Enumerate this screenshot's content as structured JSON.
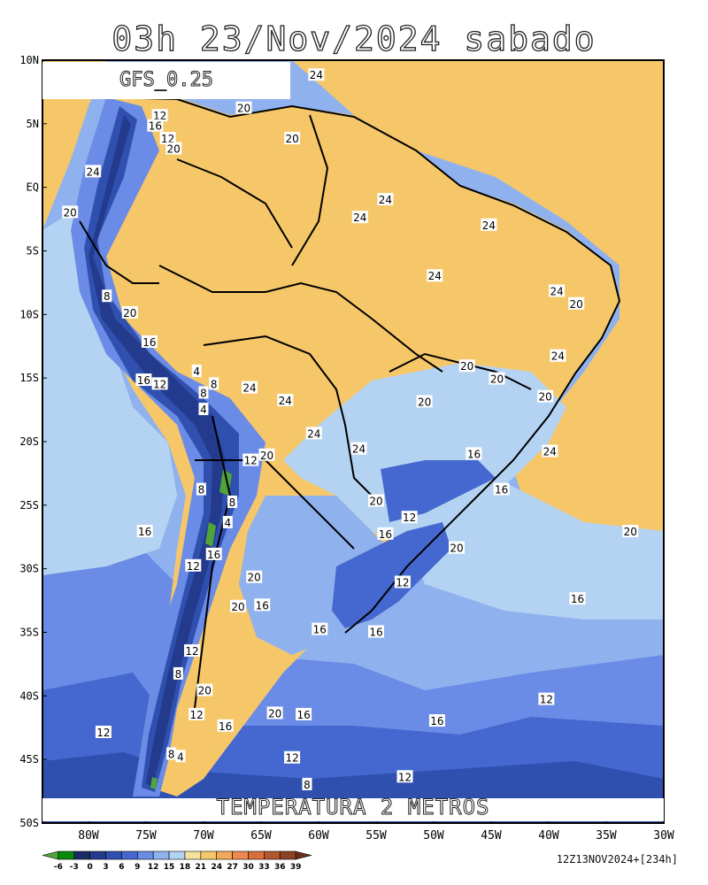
{
  "title": "03h 23/Nov/2024 sabado",
  "model": "GFS_0.25",
  "variable": "TEMPERATURA 2 METROS",
  "run": "12Z13NOV2024+[234h]",
  "lat_labels": [
    {
      "text": "10N",
      "lat": 10
    },
    {
      "text": "5N",
      "lat": 5
    },
    {
      "text": "EQ",
      "lat": 0
    },
    {
      "text": "5S",
      "lat": -5
    },
    {
      "text": "10S",
      "lat": -10
    },
    {
      "text": "15S",
      "lat": -15
    },
    {
      "text": "20S",
      "lat": -20
    },
    {
      "text": "25S",
      "lat": -25
    },
    {
      "text": "30S",
      "lat": -30
    },
    {
      "text": "35S",
      "lat": -35
    },
    {
      "text": "40S",
      "lat": -40
    },
    {
      "text": "45S",
      "lat": -45
    },
    {
      "text": "50S",
      "lat": -50
    }
  ],
  "lon_labels": [
    {
      "text": "80W",
      "lon": -80
    },
    {
      "text": "75W",
      "lon": -75
    },
    {
      "text": "70W",
      "lon": -70
    },
    {
      "text": "65W",
      "lon": -65
    },
    {
      "text": "60W",
      "lon": -60
    },
    {
      "text": "55W",
      "lon": -55
    },
    {
      "text": "50W",
      "lon": -50
    },
    {
      "text": "45W",
      "lon": -45
    },
    {
      "text": "40W",
      "lon": -40
    },
    {
      "text": "35W",
      "lon": -35
    },
    {
      "text": "30W",
      "lon": -30
    }
  ],
  "colorbar": {
    "labels": [
      "-6",
      "-3",
      "0",
      "3",
      "6",
      "9",
      "12",
      "15",
      "18",
      "21",
      "24",
      "27",
      "30",
      "33",
      "36",
      "39"
    ],
    "colors": [
      "#4fa43a",
      "#0a8a0a",
      "#1c2a66",
      "#243a8c",
      "#3050b0",
      "#4468d0",
      "#6a8ce6",
      "#8fb2ee",
      "#b4d3f3",
      "#f5e1a0",
      "#f6c769",
      "#f3a85b",
      "#ee8a4f",
      "#d8703d",
      "#b4562e",
      "#8a4422",
      "#6c2e18"
    ]
  },
  "contour_labels": [
    {
      "text": "24",
      "lon": -60.2,
      "lat": 8.8
    },
    {
      "text": "20",
      "lon": -66.5,
      "lat": 6.2
    },
    {
      "text": "12",
      "lon": -73.8,
      "lat": 5.6
    },
    {
      "text": "16",
      "lon": -74.2,
      "lat": 4.8
    },
    {
      "text": "12",
      "lon": -73.1,
      "lat": 3.8
    },
    {
      "text": "20",
      "lon": -72.6,
      "lat": 3.0
    },
    {
      "text": "20",
      "lon": -62.3,
      "lat": 3.8
    },
    {
      "text": "24",
      "lon": -79.6,
      "lat": 1.2
    },
    {
      "text": "24",
      "lon": -54.2,
      "lat": -1.0
    },
    {
      "text": "24",
      "lon": -56.4,
      "lat": -2.4
    },
    {
      "text": "20",
      "lon": -81.6,
      "lat": -2.0
    },
    {
      "text": "24",
      "lon": -45.2,
      "lat": -3.0
    },
    {
      "text": "24",
      "lon": -49.9,
      "lat": -7.0
    },
    {
      "text": "24",
      "lon": -39.3,
      "lat": -8.2
    },
    {
      "text": "20",
      "lon": -37.6,
      "lat": -9.2
    },
    {
      "text": "8",
      "lon": -78.4,
      "lat": -8.6
    },
    {
      "text": "20",
      "lon": -76.4,
      "lat": -9.9
    },
    {
      "text": "16",
      "lon": -74.7,
      "lat": -12.2
    },
    {
      "text": "4",
      "lon": -70.6,
      "lat": -14.5
    },
    {
      "text": "8",
      "lon": -69.1,
      "lat": -15.5
    },
    {
      "text": "8",
      "lon": -70.0,
      "lat": -16.2
    },
    {
      "text": "16",
      "lon": -75.2,
      "lat": -15.2
    },
    {
      "text": "12",
      "lon": -73.8,
      "lat": -15.5
    },
    {
      "text": "24",
      "lon": -66.0,
      "lat": -15.8
    },
    {
      "text": "24",
      "lon": -62.9,
      "lat": -16.8
    },
    {
      "text": "4",
      "lon": -70.0,
      "lat": -17.5
    },
    {
      "text": "20",
      "lon": -47.1,
      "lat": -14.1
    },
    {
      "text": "20",
      "lon": -44.5,
      "lat": -15.1
    },
    {
      "text": "20",
      "lon": -40.3,
      "lat": -16.5
    },
    {
      "text": "20",
      "lon": -50.8,
      "lat": -16.9
    },
    {
      "text": "24",
      "lon": -39.2,
      "lat": -13.3
    },
    {
      "text": "24",
      "lon": -60.4,
      "lat": -19.4
    },
    {
      "text": "24",
      "lon": -56.5,
      "lat": -20.6
    },
    {
      "text": "24",
      "lon": -39.9,
      "lat": -20.8
    },
    {
      "text": "16",
      "lon": -46.5,
      "lat": -21.0
    },
    {
      "text": "12",
      "lon": -65.9,
      "lat": -21.5
    },
    {
      "text": "20",
      "lon": -64.5,
      "lat": -21.1
    },
    {
      "text": "16",
      "lon": -44.1,
      "lat": -23.8
    },
    {
      "text": "8",
      "lon": -70.2,
      "lat": -23.8
    },
    {
      "text": "8",
      "lon": -67.5,
      "lat": -24.8
    },
    {
      "text": "20",
      "lon": -55.0,
      "lat": -24.7
    },
    {
      "text": "12",
      "lon": -52.1,
      "lat": -26.0
    },
    {
      "text": "4",
      "lon": -67.9,
      "lat": -26.4
    },
    {
      "text": "16",
      "lon": -75.1,
      "lat": -27.1
    },
    {
      "text": "16",
      "lon": -54.2,
      "lat": -27.3
    },
    {
      "text": "20",
      "lon": -32.9,
      "lat": -27.1
    },
    {
      "text": "20",
      "lon": -48.0,
      "lat": -28.4
    },
    {
      "text": "16",
      "lon": -69.1,
      "lat": -28.9
    },
    {
      "text": "12",
      "lon": -70.9,
      "lat": -29.8
    },
    {
      "text": "20",
      "lon": -65.6,
      "lat": -30.7
    },
    {
      "text": "12",
      "lon": -52.7,
      "lat": -31.1
    },
    {
      "text": "16",
      "lon": -64.9,
      "lat": -32.9
    },
    {
      "text": "20",
      "lon": -67.0,
      "lat": -33.0
    },
    {
      "text": "16",
      "lon": -37.5,
      "lat": -32.4
    },
    {
      "text": "16",
      "lon": -59.9,
      "lat": -34.8
    },
    {
      "text": "16",
      "lon": -55.0,
      "lat": -35.0
    },
    {
      "text": "12",
      "lon": -71.0,
      "lat": -36.5
    },
    {
      "text": "8",
      "lon": -72.2,
      "lat": -38.3
    },
    {
      "text": "20",
      "lon": -69.9,
      "lat": -39.6
    },
    {
      "text": "12",
      "lon": -40.2,
      "lat": -40.3
    },
    {
      "text": "20",
      "lon": -63.8,
      "lat": -41.4
    },
    {
      "text": "16",
      "lon": -61.3,
      "lat": -41.5
    },
    {
      "text": "12",
      "lon": -70.6,
      "lat": -41.5
    },
    {
      "text": "16",
      "lon": -68.1,
      "lat": -42.4
    },
    {
      "text": "16",
      "lon": -49.7,
      "lat": -42.0
    },
    {
      "text": "12",
      "lon": -78.7,
      "lat": -42.9
    },
    {
      "text": "8",
      "lon": -72.8,
      "lat": -44.6
    },
    {
      "text": "4",
      "lon": -72.0,
      "lat": -44.8
    },
    {
      "text": "12",
      "lon": -62.3,
      "lat": -44.9
    },
    {
      "text": "12",
      "lon": -52.5,
      "lat": -46.4
    },
    {
      "text": "8",
      "lon": -61.0,
      "lat": -47.0
    }
  ]
}
